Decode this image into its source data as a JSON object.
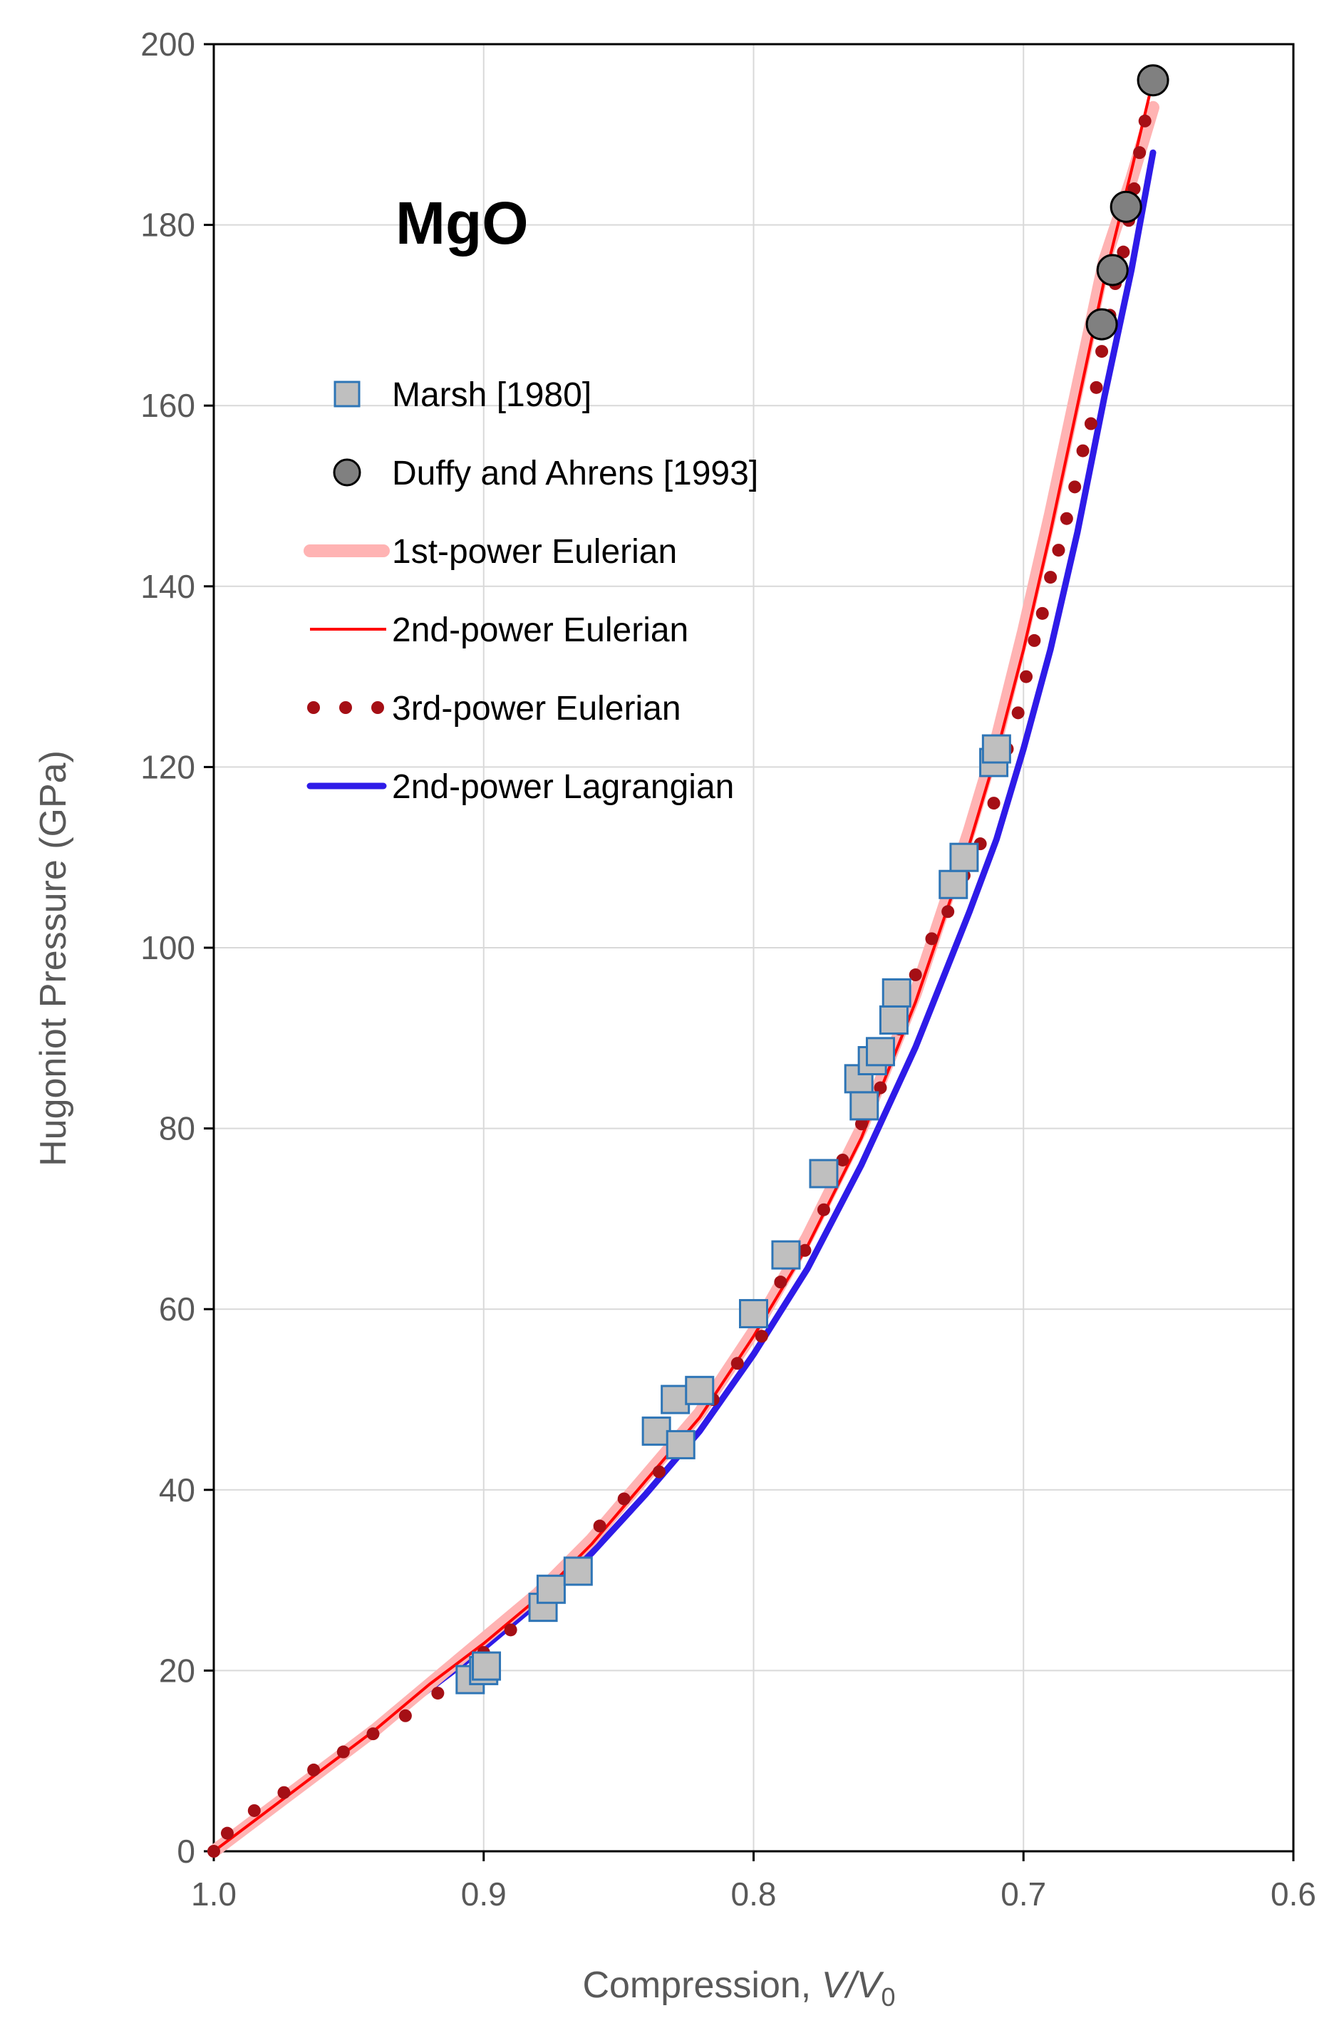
{
  "chart_data": {
    "type": "scatter",
    "title": "",
    "annotation": "MgO",
    "xlabel": {
      "prefix": "Compression, ",
      "var": "V/V",
      "sub": "0"
    },
    "ylabel": "Hugoniot Pressure (GPa)",
    "xlim": [
      1.0,
      0.6
    ],
    "x_reversed": true,
    "ylim": [
      0,
      200
    ],
    "x_ticks": [
      1.0,
      0.9,
      0.8,
      0.7,
      0.6
    ],
    "x_tick_labels": [
      "1.0",
      "0.9",
      "0.8",
      "0.7",
      "0.6"
    ],
    "y_ticks": [
      0,
      20,
      40,
      60,
      80,
      100,
      120,
      140,
      160,
      180,
      200
    ],
    "y_tick_labels": [
      "0",
      "20",
      "40",
      "60",
      "80",
      "100",
      "120",
      "140",
      "160",
      "180",
      "200"
    ],
    "grid": true,
    "legend_placement": "upper-left",
    "series": [
      {
        "name": "Marsh [1980]",
        "kind": "marker-square",
        "color": "#bfbfbf",
        "edge": "#2e75b6",
        "x": [
          0.905,
          0.9,
          0.899,
          0.878,
          0.875,
          0.865,
          0.836,
          0.829,
          0.827,
          0.82,
          0.8,
          0.788,
          0.774,
          0.761,
          0.759,
          0.756,
          0.753,
          0.748,
          0.747,
          0.726,
          0.722,
          0.711,
          0.71
        ],
        "y": [
          19,
          20,
          20.5,
          27,
          29,
          31,
          46.5,
          50,
          45,
          51,
          59.5,
          66,
          75,
          85.5,
          82.5,
          87.5,
          88.5,
          92,
          95,
          107,
          110,
          120.5,
          122
        ]
      },
      {
        "name": "Duffy and Ahrens [1993]",
        "kind": "marker-circle",
        "color": "#808080",
        "edge": "#000000",
        "x": [
          0.671,
          0.667,
          0.662,
          0.652
        ],
        "y": [
          169,
          175,
          182,
          196
        ]
      },
      {
        "name": "1st-power Eulerian",
        "kind": "line-thick",
        "color": "#ffb3b3",
        "x": [
          1.0,
          0.98,
          0.96,
          0.94,
          0.92,
          0.9,
          0.88,
          0.86,
          0.84,
          0.82,
          0.8,
          0.78,
          0.76,
          0.74,
          0.72,
          0.71,
          0.7,
          0.69,
          0.68,
          0.67,
          0.66,
          0.652
        ],
        "y": [
          0,
          4.5,
          9,
          13.5,
          18.5,
          23.5,
          28.5,
          34.5,
          41.5,
          48.5,
          57.5,
          68,
          80,
          95,
          113,
          123,
          135,
          148,
          162,
          176,
          185,
          193
        ]
      },
      {
        "name": "2nd-power Eulerian",
        "kind": "line-thin",
        "color": "#ff0000",
        "x": [
          1.0,
          0.98,
          0.96,
          0.94,
          0.92,
          0.9,
          0.88,
          0.86,
          0.84,
          0.82,
          0.8,
          0.78,
          0.76,
          0.74,
          0.72,
          0.71,
          0.7,
          0.69,
          0.68,
          0.67,
          0.66,
          0.652
        ],
        "y": [
          0,
          4.5,
          9,
          13.5,
          18.5,
          23,
          28,
          34,
          41,
          48,
          57,
          67,
          79,
          94,
          111.5,
          121.5,
          133,
          146,
          160,
          174,
          186,
          196
        ]
      },
      {
        "name": "3rd-power Eulerian",
        "kind": "dots",
        "color": "#a50f15",
        "x": [
          1.0,
          0.995,
          0.985,
          0.974,
          0.963,
          0.952,
          0.941,
          0.929,
          0.917,
          0.9,
          0.89,
          0.88,
          0.868,
          0.857,
          0.848,
          0.835,
          0.826,
          0.815,
          0.806,
          0.797,
          0.79,
          0.781,
          0.774,
          0.767,
          0.76,
          0.753,
          0.746,
          0.74,
          0.734,
          0.728,
          0.722,
          0.716,
          0.711,
          0.706,
          0.702,
          0.699,
          0.696,
          0.693,
          0.69,
          0.687,
          0.684,
          0.681,
          0.678,
          0.675,
          0.673,
          0.671,
          0.668,
          0.666,
          0.663,
          0.661,
          0.659,
          0.657,
          0.655,
          0.653
        ],
        "y": [
          0,
          2,
          4.5,
          6.5,
          9,
          11,
          13,
          15,
          17.5,
          22,
          24.5,
          27,
          30.5,
          36,
          39,
          42,
          45.5,
          50,
          54,
          57,
          63,
          66.5,
          71,
          76.5,
          80.5,
          84.5,
          91,
          97,
          101,
          104,
          108,
          111.5,
          116,
          122,
          126,
          130,
          134,
          137,
          141,
          144,
          147.5,
          151,
          155,
          158,
          162,
          166,
          170,
          173.5,
          177,
          180.5,
          184,
          188,
          191.5,
          196
        ]
      },
      {
        "name": "2nd-power Lagrangian",
        "kind": "line-thick",
        "color": "#2e1be8",
        "x": [
          1.0,
          0.98,
          0.96,
          0.94,
          0.92,
          0.9,
          0.88,
          0.86,
          0.84,
          0.82,
          0.8,
          0.78,
          0.76,
          0.74,
          0.72,
          0.71,
          0.7,
          0.69,
          0.68,
          0.67,
          0.66,
          0.652
        ],
        "y": [
          0,
          4.5,
          9,
          13.5,
          18,
          22.5,
          27.5,
          33,
          39.5,
          46.5,
          55,
          64.5,
          76,
          89,
          104,
          112,
          122,
          133,
          146,
          161,
          175,
          188
        ]
      }
    ]
  }
}
